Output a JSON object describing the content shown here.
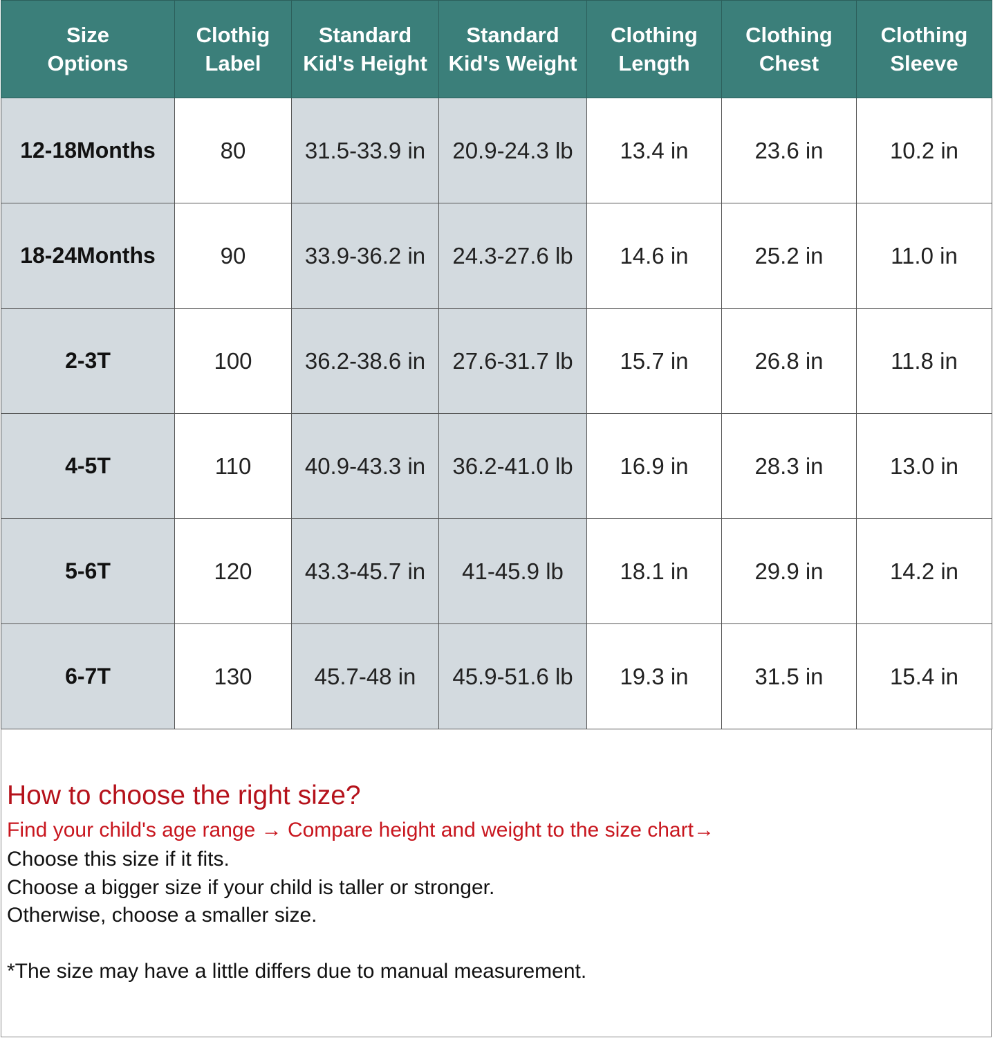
{
  "table": {
    "headers": [
      [
        "Size",
        "Options"
      ],
      [
        "Clothig",
        "Label"
      ],
      [
        "Standard",
        "Kid's Height"
      ],
      [
        "Standard",
        "Kid's Weight"
      ],
      [
        "Clothing",
        "Length"
      ],
      [
        "Clothing",
        "Chest"
      ],
      [
        "Clothing",
        "Sleeve"
      ]
    ],
    "rows": [
      [
        "12-18Months",
        "80",
        "31.5-33.9 in",
        "20.9-24.3 lb",
        "13.4 in",
        "23.6 in",
        "10.2 in"
      ],
      [
        "18-24Months",
        "90",
        "33.9-36.2 in",
        "24.3-27.6 lb",
        "14.6 in",
        "25.2 in",
        "11.0 in"
      ],
      [
        "2-3T",
        "100",
        "36.2-38.6 in",
        "27.6-31.7 lb",
        "15.7 in",
        "26.8 in",
        "11.8 in"
      ],
      [
        "4-5T",
        "110",
        "40.9-43.3 in",
        "36.2-41.0 lb",
        "16.9 in",
        "28.3 in",
        "13.0 in"
      ],
      [
        "5-6T",
        "120",
        "43.3-45.7 in",
        "41-45.9 lb",
        "18.1 in",
        "29.9 in",
        "14.2 in"
      ],
      [
        "6-7T",
        "130",
        "45.7-48 in",
        "45.9-51.6 lb",
        "19.3 in",
        "31.5 in",
        "15.4 in"
      ]
    ],
    "colors": {
      "header_bg": "#3b7f7a",
      "shaded_cell": "#d3dadf"
    }
  },
  "notes": {
    "heading": "How to choose the right size?",
    "step": "Find your child's age range → Compare height and weight to the size chart→",
    "line1": "Choose this size if it fits.",
    "line2": "Choose a bigger size if your child is taller or stronger.",
    "line3": "Otherwise, choose a smaller size.",
    "disclaimer": "*The size  may have a little differs due to manual measurement.",
    "accent_color": "#c8161e"
  }
}
